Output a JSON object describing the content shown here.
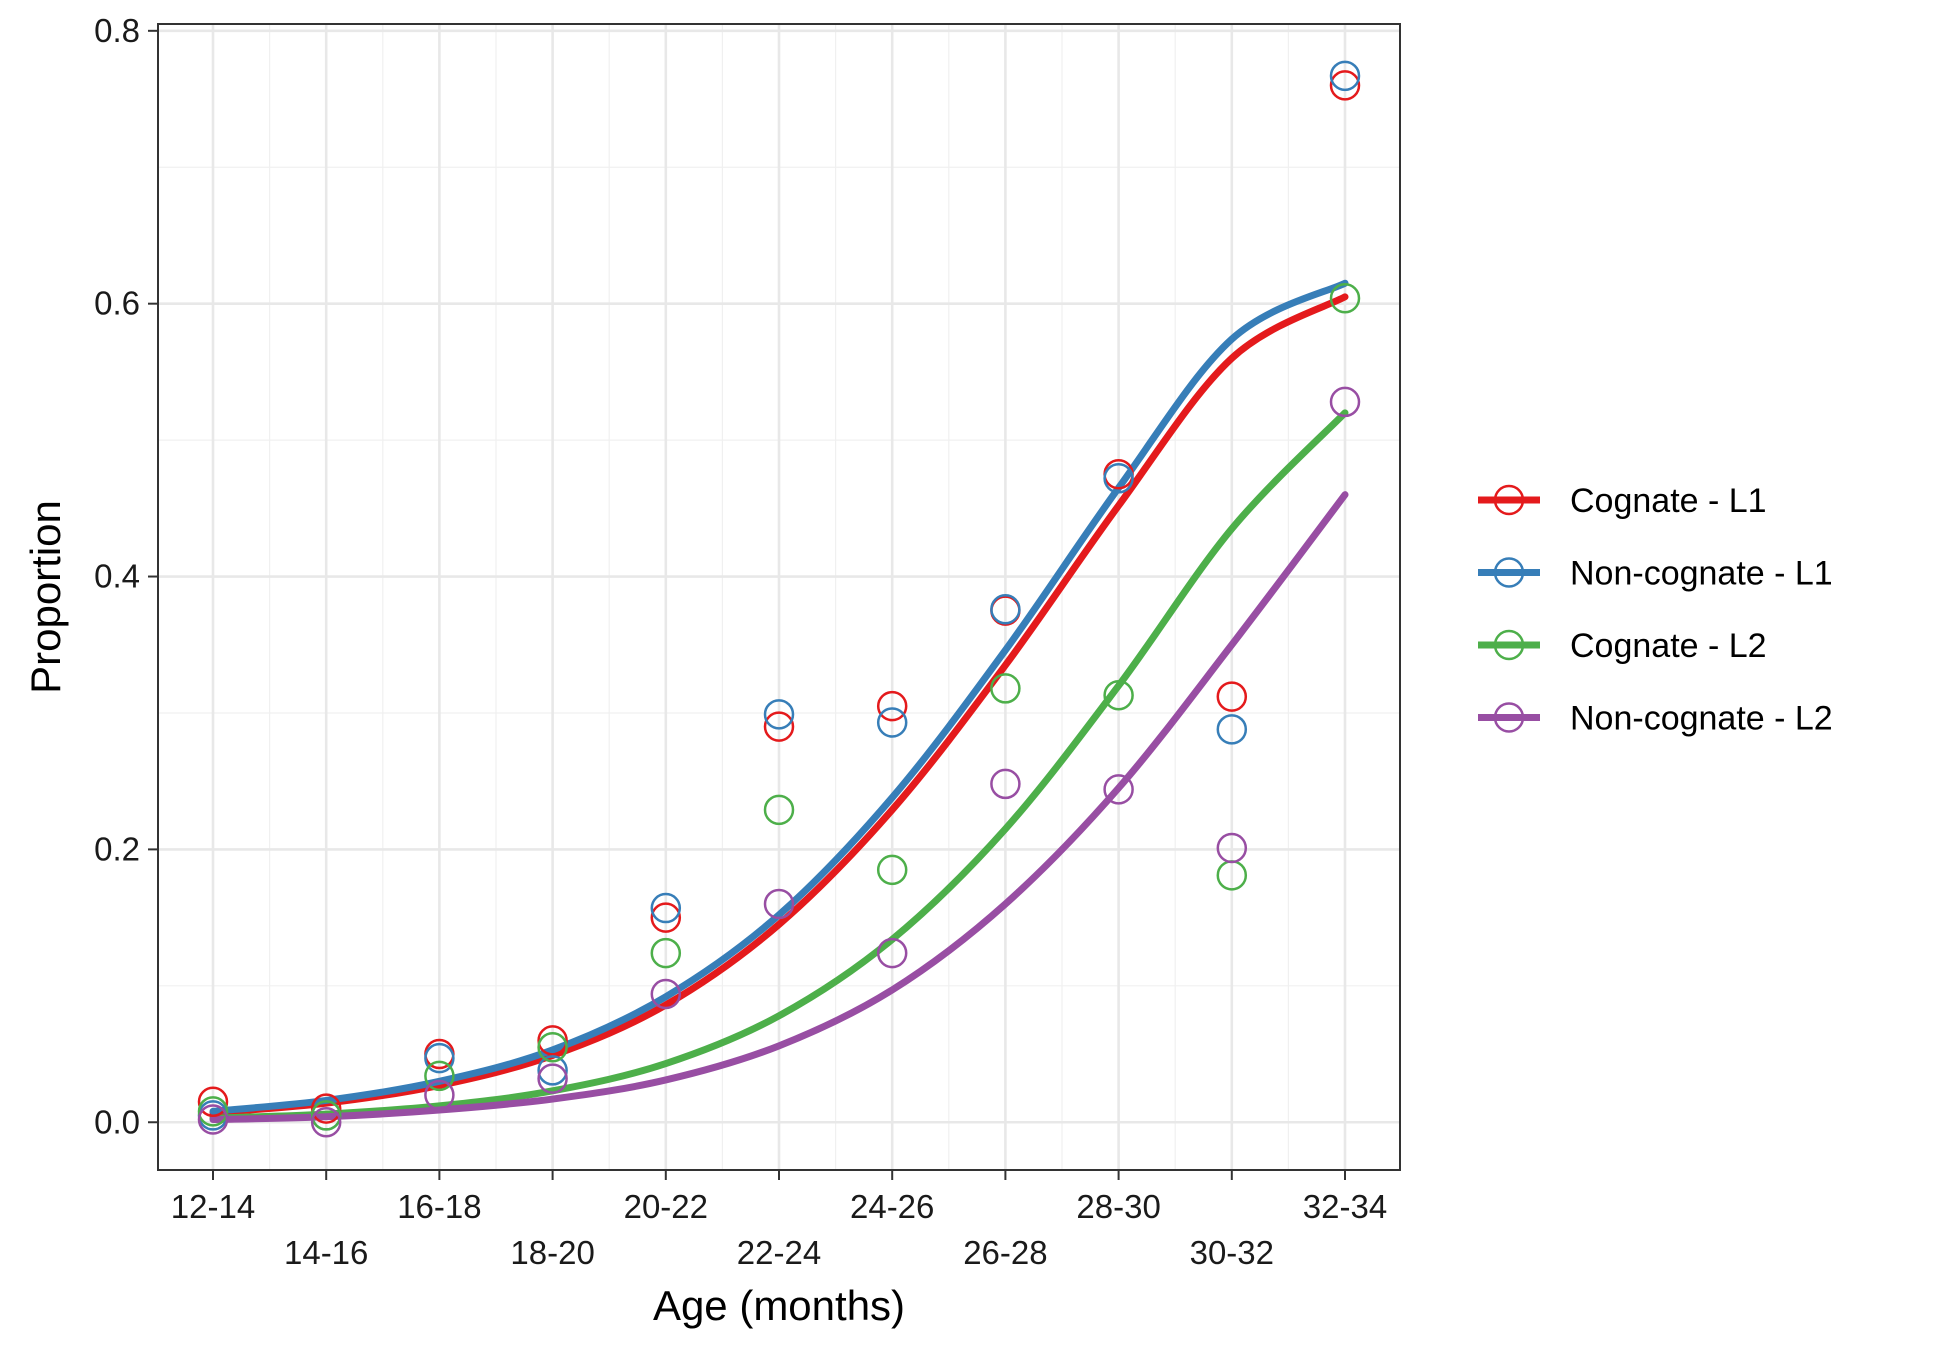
{
  "chart_data": {
    "type": "scatter",
    "title": "",
    "xlabel": "Age (months)",
    "ylabel": "Proportion",
    "categories": [
      "12-14",
      "14-16",
      "16-18",
      "18-20",
      "20-22",
      "22-24",
      "24-26",
      "26-28",
      "28-30",
      "30-32",
      "32-34"
    ],
    "yticks": [
      "0.0",
      "0.2",
      "0.4",
      "0.6",
      "0.8"
    ],
    "ylim": [
      -0.035,
      0.805
    ],
    "grid": true,
    "legend_position": "right",
    "series": [
      {
        "name": "Cognate - L1",
        "color": "#e41a1c",
        "points": [
          0.015,
          0.01,
          0.05,
          0.06,
          0.15,
          0.29,
          0.305,
          0.375,
          0.475,
          0.312,
          0.76
        ],
        "fit": [
          0.007,
          0.014,
          0.027,
          0.049,
          0.086,
          0.145,
          0.229,
          0.335,
          0.452,
          0.56,
          0.605
        ]
      },
      {
        "name": "Non-cognate - L1",
        "color": "#377eb8",
        "points": [
          0.005,
          0.005,
          0.047,
          0.038,
          0.157,
          0.299,
          0.293,
          0.376,
          0.472,
          0.288,
          0.767
        ],
        "fit": [
          0.008,
          0.016,
          0.03,
          0.053,
          0.092,
          0.152,
          0.238,
          0.346,
          0.465,
          0.574,
          0.615
        ]
      },
      {
        "name": "Cognate - L2",
        "color": "#4daf4a",
        "points": [
          0.008,
          0.005,
          0.034,
          0.055,
          0.124,
          0.229,
          0.185,
          0.318,
          0.313,
          0.181,
          0.604
        ],
        "fit": [
          0.003,
          0.006,
          0.012,
          0.023,
          0.043,
          0.078,
          0.134,
          0.215,
          0.32,
          0.435,
          0.52
        ]
      },
      {
        "name": "Non-cognate - L2",
        "color": "#984ea3",
        "points": [
          0.002,
          0.0,
          0.02,
          0.032,
          0.094,
          0.16,
          0.124,
          0.248,
          0.244,
          0.201,
          0.528
        ],
        "fit": [
          0.002,
          0.004,
          0.009,
          0.017,
          0.031,
          0.056,
          0.097,
          0.16,
          0.245,
          0.35,
          0.46
        ]
      }
    ]
  }
}
